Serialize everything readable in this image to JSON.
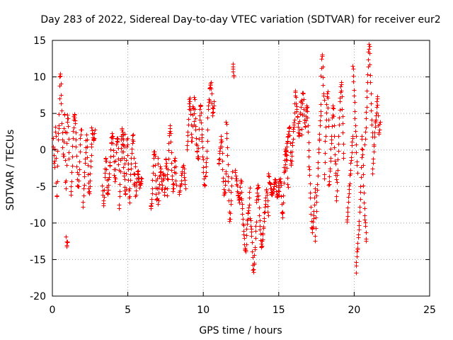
{
  "chart_data": {
    "type": "scatter",
    "title": "Day 283 of 2022, Sidereal Day-to-day VTEC variation (SDTVAR) for receiver eur2",
    "xlabel": "GPS time / hours",
    "ylabel": "SDTVAR / TECUs",
    "xlim": [
      0,
      25
    ],
    "ylim": [
      -20,
      15
    ],
    "xticks": [
      0,
      5,
      10,
      15,
      20,
      25
    ],
    "yticks": [
      -20,
      -15,
      -10,
      -5,
      0,
      5,
      10,
      15
    ],
    "grid": true,
    "marker": "+",
    "series_color": "#ff0000",
    "segments": [
      {
        "x0": 0.05,
        "x1": 1.1,
        "ys": [
          1.5,
          -2.5,
          3.0,
          -6.5,
          0.5,
          4.0,
          10.5,
          7.0,
          2.0,
          -1.0,
          5.0,
          -5.5,
          2.5,
          4.5,
          -1.5
        ]
      },
      {
        "x0": 0.9,
        "x1": 1.0,
        "ys": [
          -11.8,
          -13.0,
          -12.3
        ]
      },
      {
        "x0": 1.2,
        "x1": 1.9,
        "ys": [
          -6.0,
          -3.0,
          2.0,
          4.8,
          3.5,
          -1.0,
          -5.0,
          -4.0,
          0.5,
          3.0
        ]
      },
      {
        "x0": 2.0,
        "x1": 2.6,
        "ys": [
          -8.0,
          -5.0,
          -1.0,
          2.0,
          -2.5,
          -6.0,
          -3.0,
          1.0
        ]
      },
      {
        "x0": 2.6,
        "x1": 2.8,
        "ys": [
          3.0,
          2.0,
          1.5,
          2.5
        ]
      },
      {
        "x0": 3.3,
        "x1": 3.8,
        "ys": [
          -5.0,
          -7.5,
          -3.0,
          -1.0,
          -6.0,
          -4.5,
          -2.0
        ]
      },
      {
        "x0": 3.8,
        "x1": 4.4,
        "ys": [
          -2.0,
          1.0,
          2.0,
          -1.5,
          -4.0,
          0.5,
          1.5,
          -3.0
        ]
      },
      {
        "x0": 4.4,
        "x1": 4.8,
        "ys": [
          -8.0,
          -5.0,
          0.0,
          3.0,
          1.0,
          -4.0,
          2.0
        ]
      },
      {
        "x0": 4.6,
        "x1": 5.5,
        "ys": [
          -1.0,
          2.0,
          -4.0,
          -6.0,
          1.5,
          -2.0,
          -7.0,
          -3.0,
          0.0,
          2.0,
          -5.0,
          -1.5
        ]
      },
      {
        "x0": 5.5,
        "x1": 5.9,
        "ys": [
          -6.5,
          -3.0,
          -5.0,
          -4.0
        ]
      },
      {
        "x0": 6.5,
        "x1": 7.0,
        "ys": [
          -8.0,
          -6.5,
          -2.0,
          0.0,
          -4.5,
          -7.0,
          -1.0
        ]
      },
      {
        "x0": 7.0,
        "x1": 7.6,
        "ys": [
          -7.5,
          -4.0,
          -2.5,
          -5.5,
          -3.0,
          -6.0,
          -1.0,
          -4.0
        ]
      },
      {
        "x0": 7.6,
        "x1": 8.2,
        "ys": [
          -6.0,
          0.5,
          3.0,
          -2.5,
          -5.5,
          -1.0,
          -4.5
        ]
      },
      {
        "x0": 8.4,
        "x1": 8.8,
        "ys": [
          -6.0,
          -4.0,
          -2.0,
          -5.0
        ]
      },
      {
        "x0": 8.9,
        "x1": 9.4,
        "ys": [
          0.0,
          3.0,
          7.0,
          5.0,
          1.0,
          6.0,
          3.5
        ]
      },
      {
        "x0": 9.4,
        "x1": 9.9,
        "ys": [
          7.5,
          3.0,
          0.0,
          -1.0,
          4.0,
          6.0,
          2.0
        ]
      },
      {
        "x0": 9.9,
        "x1": 10.4,
        "ys": [
          2.0,
          -2.0,
          -5.0,
          -3.0,
          0.0,
          6.0,
          7.0
        ]
      },
      {
        "x0": 10.4,
        "x1": 10.7,
        "ys": [
          8.5,
          9.0,
          5.0,
          6.5
        ]
      },
      {
        "x0": 11.0,
        "x1": 11.5,
        "ys": [
          -2.0,
          0.0,
          1.5,
          -4.0,
          -6.0,
          -3.0
        ]
      },
      {
        "x0": 11.5,
        "x1": 11.9,
        "ys": [
          4.0,
          0.0,
          -5.0,
          -9.5,
          -7.0,
          -3.0
        ]
      },
      {
        "x0": 11.95,
        "x1": 12.0,
        "ys": [
          11.7,
          10.2
        ]
      },
      {
        "x0": 12.1,
        "x1": 12.5,
        "ys": [
          -3.0,
          -5.0,
          -7.0,
          -4.0
        ]
      },
      {
        "x0": 12.5,
        "x1": 13.1,
        "ys": [
          -6.0,
          -9.0,
          -12.0,
          -14.0,
          -10.0,
          -8.0,
          -5.0
        ]
      },
      {
        "x0": 13.1,
        "x1": 13.5,
        "ys": [
          -9.5,
          -12.0,
          -16.5,
          -14.0,
          -10.0
        ]
      },
      {
        "x0": 13.5,
        "x1": 14.3,
        "ys": [
          -7.0,
          -5.0,
          -10.0,
          -13.0,
          -11.0,
          -8.0,
          -5.5,
          -9.0
        ]
      },
      {
        "x0": 14.3,
        "x1": 15.0,
        "ys": [
          -3.5,
          -4.5,
          -6.0,
          -5.0,
          -4.0,
          -6.5,
          -4.2
        ]
      },
      {
        "x0": 15.0,
        "x1": 15.6,
        "ys": [
          -6.0,
          -4.0,
          -9.0,
          -2.0,
          0.0,
          -5.0
        ]
      },
      {
        "x0": 15.4,
        "x1": 16.0,
        "ys": [
          -3.0,
          0.0,
          2.0,
          3.0,
          -2.0,
          1.0,
          4.0
        ]
      },
      {
        "x0": 16.0,
        "x1": 16.5,
        "ys": [
          3.0,
          8.0,
          6.0,
          4.0,
          2.0,
          5.0,
          7.0
        ]
      },
      {
        "x0": 16.5,
        "x1": 17.0,
        "ys": [
          2.0,
          8.0,
          5.0,
          3.0,
          6.0,
          4.0,
          -1.0
        ]
      },
      {
        "x0": 17.0,
        "x1": 17.4,
        "ys": [
          -2.0,
          -7.0,
          -11.0,
          -9.0,
          -5.0
        ]
      },
      {
        "x0": 17.4,
        "x1": 17.8,
        "ys": [
          -12.5,
          -8.0,
          -4.0,
          0.0,
          3.0,
          6.0
        ]
      },
      {
        "x0": 17.8,
        "x1": 18.0,
        "ys": [
          10.0,
          13.0,
          9.0,
          7.0
        ]
      },
      {
        "x0": 18.0,
        "x1": 18.3,
        "ys": [
          -4.0,
          1.0,
          5.0,
          8.0,
          3.0
        ]
      },
      {
        "x0": 18.3,
        "x1": 18.8,
        "ys": [
          -5.0,
          -2.0,
          2.0,
          6.0,
          0.0,
          -4.0
        ]
      },
      {
        "x0": 18.8,
        "x1": 19.3,
        "ys": [
          -7.0,
          -3.0,
          2.0,
          7.0,
          9.0,
          4.0,
          -1.0
        ]
      },
      {
        "x0": 19.5,
        "x1": 19.9,
        "ys": [
          -10.0,
          -7.0,
          -4.0,
          -1.0,
          2.0
        ]
      },
      {
        "x0": 19.9,
        "x1": 20.2,
        "ys": [
          11.5,
          9.0,
          6.0,
          3.0,
          0.0,
          -3.0
        ]
      },
      {
        "x0": 20.1,
        "x1": 20.5,
        "ys": [
          -16.5,
          -14.0,
          -12.0,
          -9.0,
          -5.0,
          0.0
        ]
      },
      {
        "x0": 20.5,
        "x1": 20.8,
        "ys": [
          2.0,
          -2.0,
          -7.0,
          -10.0,
          -12.5
        ]
      },
      {
        "x0": 20.7,
        "x1": 21.2,
        "ys": [
          1.0,
          4.0,
          8.0,
          12.0,
          14.2,
          10.0,
          5.0,
          2.0
        ]
      },
      {
        "x0": 21.2,
        "x1": 21.7,
        "ys": [
          -3.0,
          0.0,
          3.0,
          5.0,
          7.0,
          2.0,
          4.0
        ]
      }
    ]
  }
}
